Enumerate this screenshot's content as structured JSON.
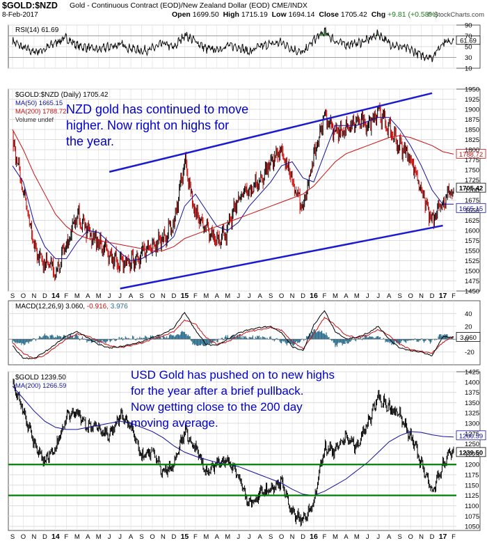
{
  "header": {
    "symbol": "$GOLD:$NZD",
    "subtitle": "Gold - Continuous Contract (EOD)/New Zealand Dollar (EOD)  CME/INDX",
    "date": "8-Feb-2017",
    "open_label": "Open",
    "open": "1699.50",
    "high_label": "High",
    "high": "1715.19",
    "low_label": "Low",
    "low": "1694.14",
    "close_label": "Close",
    "close": "1705.42",
    "chg_label": "Chg",
    "chg": "+9.81 (+0.58%)",
    "watermark": "© StockCharts.com"
  },
  "colors": {
    "price": "#000000",
    "up_bar": "#000000",
    "down_bar": "#cc0000",
    "ma50": "#1010a0",
    "ma200": "#cc1010",
    "trendline": "#1a1ad0",
    "support": "#008000",
    "annotation": "#0000cc",
    "rsi_fill_high": "#2a8c2a",
    "rsi_fill_low": "#d05050",
    "macd_hist": "#2a6c8c",
    "grid": "#dcdcdc"
  },
  "x_axis": {
    "labels": [
      "S",
      "O",
      "N",
      "D",
      "14",
      "F",
      "M",
      "A",
      "M",
      "J",
      "J",
      "A",
      "S",
      "O",
      "N",
      "D",
      "15",
      "F",
      "M",
      "A",
      "M",
      "J",
      "J",
      "A",
      "S",
      "O",
      "N",
      "D",
      "16",
      "F",
      "M",
      "A",
      "M",
      "J",
      "J",
      "A",
      "S",
      "O",
      "N",
      "D",
      "17",
      "F"
    ],
    "years": [
      "14",
      "15",
      "16",
      "17"
    ]
  },
  "chart_data": [
    {
      "type": "line",
      "panel": "RSI",
      "legend": "RSI(14) 61.69",
      "current_label": "61.69",
      "ylim": [
        10,
        90
      ],
      "y_ticks": [
        10,
        30,
        50,
        70,
        90
      ],
      "reference_lines": [
        30,
        70
      ],
      "x": [
        "2013-09",
        "2013-10",
        "2013-11",
        "2013-12",
        "2014-01",
        "2014-02",
        "2014-03",
        "2014-04",
        "2014-05",
        "2014-06",
        "2014-07",
        "2014-08",
        "2014-09",
        "2014-10",
        "2014-11",
        "2014-12",
        "2015-01",
        "2015-02",
        "2015-03",
        "2015-04",
        "2015-05",
        "2015-06",
        "2015-07",
        "2015-08",
        "2015-09",
        "2015-10",
        "2015-11",
        "2015-12",
        "2016-01",
        "2016-02",
        "2016-03",
        "2016-04",
        "2016-05",
        "2016-06",
        "2016-07",
        "2016-08",
        "2016-09",
        "2016-10",
        "2016-11",
        "2016-12",
        "2017-01",
        "2017-02"
      ],
      "values": [
        60,
        48,
        40,
        45,
        58,
        66,
        52,
        48,
        44,
        50,
        54,
        47,
        42,
        46,
        56,
        48,
        72,
        60,
        46,
        44,
        52,
        50,
        40,
        50,
        55,
        58,
        46,
        38,
        62,
        78,
        60,
        54,
        56,
        62,
        74,
        56,
        50,
        44,
        34,
        30,
        58,
        62
      ]
    },
    {
      "type": "line",
      "panel": "$GOLD:$NZD",
      "legend": [
        "$GOLD:$NZD (Daily) 1705.42",
        "MA(50) 1665.15",
        "MA(200) 1788.72",
        "Volume undef"
      ],
      "current_labels": [
        "1705.42",
        "1665.15",
        "1788.72"
      ],
      "ylim": [
        1450,
        1950
      ],
      "y_ticks": [
        1450,
        1475,
        1500,
        1525,
        1550,
        1575,
        1600,
        1625,
        1650,
        1675,
        1700,
        1725,
        1750,
        1775,
        1800,
        1825,
        1850,
        1875,
        1900,
        1925,
        1950
      ],
      "x": [
        "2013-09",
        "2013-10",
        "2013-11",
        "2013-12",
        "2014-01",
        "2014-02",
        "2014-03",
        "2014-04",
        "2014-05",
        "2014-06",
        "2014-07",
        "2014-08",
        "2014-09",
        "2014-10",
        "2014-11",
        "2014-12",
        "2015-01",
        "2015-02",
        "2015-03",
        "2015-04",
        "2015-05",
        "2015-06",
        "2015-07",
        "2015-08",
        "2015-09",
        "2015-10",
        "2015-11",
        "2015-12",
        "2016-01",
        "2016-02",
        "2016-03",
        "2016-04",
        "2016-05",
        "2016-06",
        "2016-07",
        "2016-08",
        "2016-09",
        "2016-10",
        "2016-11",
        "2016-12",
        "2017-01",
        "2017-02"
      ],
      "series": [
        {
          "name": "$GOLD:$NZD",
          "values": [
            1820,
            1700,
            1560,
            1520,
            1500,
            1560,
            1640,
            1600,
            1570,
            1540,
            1520,
            1520,
            1540,
            1560,
            1580,
            1620,
            1770,
            1640,
            1600,
            1580,
            1600,
            1680,
            1700,
            1720,
            1770,
            1800,
            1720,
            1650,
            1780,
            1890,
            1840,
            1850,
            1870,
            1860,
            1900,
            1850,
            1810,
            1780,
            1700,
            1620,
            1670,
            1705
          ]
        },
        {
          "name": "MA(50)",
          "values": [
            1760,
            1720,
            1620,
            1560,
            1530,
            1530,
            1570,
            1600,
            1595,
            1570,
            1545,
            1525,
            1530,
            1545,
            1560,
            1585,
            1660,
            1690,
            1650,
            1610,
            1600,
            1620,
            1660,
            1690,
            1720,
            1760,
            1770,
            1730,
            1720,
            1790,
            1860,
            1860,
            1860,
            1870,
            1880,
            1880,
            1850,
            1810,
            1760,
            1700,
            1665,
            1665
          ]
        },
        {
          "name": "MA(200)",
          "values": [
            1850,
            1800,
            1740,
            1690,
            1640,
            1610,
            1590,
            1580,
            1575,
            1570,
            1565,
            1560,
            1555,
            1550,
            1550,
            1560,
            1580,
            1590,
            1600,
            1610,
            1620,
            1630,
            1640,
            1650,
            1660,
            1670,
            1680,
            1690,
            1710,
            1740,
            1770,
            1790,
            1800,
            1810,
            1820,
            1830,
            1835,
            1830,
            1820,
            1810,
            1795,
            1789
          ]
        }
      ],
      "trendlines": [
        {
          "x": [
            "2014-06",
            "2016-12"
          ],
          "y": [
            1745,
            1940
          ]
        },
        {
          "x": [
            "2014-07",
            "2017-01"
          ],
          "y": [
            1456,
            1612
          ]
        }
      ],
      "annotation": "NZD gold has continued to move higher. Now right on highs for the year."
    },
    {
      "type": "line",
      "panel": "MACD",
      "legend": [
        "MACD(12,26,9) 3.060,",
        "-0.916,",
        "3.976"
      ],
      "current_label": "3.060",
      "ylim": [
        -40,
        60
      ],
      "y_ticks": [
        -20,
        0,
        20,
        40
      ],
      "x": [
        "2013-09",
        "2013-10",
        "2013-11",
        "2013-12",
        "2014-01",
        "2014-02",
        "2014-03",
        "2014-04",
        "2014-05",
        "2014-06",
        "2014-07",
        "2014-08",
        "2014-09",
        "2014-10",
        "2014-11",
        "2014-12",
        "2015-01",
        "2015-02",
        "2015-03",
        "2015-04",
        "2015-05",
        "2015-06",
        "2015-07",
        "2015-08",
        "2015-09",
        "2015-10",
        "2015-11",
        "2015-12",
        "2016-01",
        "2016-02",
        "2016-03",
        "2016-04",
        "2016-05",
        "2016-06",
        "2016-07",
        "2016-08",
        "2016-09",
        "2016-10",
        "2016-11",
        "2016-12",
        "2017-01",
        "2017-02"
      ],
      "series": [
        {
          "name": "MACD",
          "values": [
            -10,
            -30,
            -30,
            -20,
            -8,
            5,
            12,
            2,
            -8,
            -14,
            -12,
            -8,
            -4,
            3,
            8,
            18,
            42,
            14,
            -8,
            -10,
            0,
            10,
            15,
            18,
            20,
            10,
            -12,
            -18,
            22,
            45,
            12,
            0,
            3,
            9,
            20,
            0,
            -14,
            -18,
            -20,
            -26,
            4,
            3.06
          ]
        },
        {
          "name": "Signal",
          "values": [
            -6,
            -22,
            -30,
            -25,
            -12,
            0,
            8,
            5,
            -3,
            -10,
            -13,
            -10,
            -6,
            0,
            5,
            12,
            30,
            24,
            2,
            -8,
            -4,
            5,
            12,
            15,
            18,
            14,
            -4,
            -15,
            8,
            34,
            22,
            6,
            2,
            6,
            15,
            6,
            -8,
            -16,
            -19,
            -22,
            -5,
            3.98
          ]
        },
        {
          "name": "Histogram",
          "values": [
            -4,
            -8,
            0,
            5,
            4,
            5,
            4,
            -3,
            -5,
            -4,
            1,
            2,
            2,
            3,
            3,
            6,
            12,
            -10,
            -10,
            -2,
            4,
            5,
            3,
            3,
            2,
            -4,
            -8,
            -3,
            14,
            11,
            -10,
            -6,
            1,
            3,
            5,
            -6,
            -6,
            -2,
            -1,
            -4,
            9,
            -0.92
          ]
        }
      ]
    },
    {
      "type": "line",
      "panel": "$GOLD",
      "legend": [
        "$GOLD 1239.50",
        "MA(200) 1266.59"
      ],
      "current_labels": [
        "1266.59",
        "1239.50"
      ],
      "ylim": [
        1040,
        1425
      ],
      "y_ticks": [
        1050,
        1075,
        1100,
        1125,
        1150,
        1175,
        1200,
        1225,
        1250,
        1275,
        1300,
        1325,
        1350,
        1375,
        1400,
        1425
      ],
      "x": [
        "2013-09",
        "2013-10",
        "2013-11",
        "2013-12",
        "2014-01",
        "2014-02",
        "2014-03",
        "2014-04",
        "2014-05",
        "2014-06",
        "2014-07",
        "2014-08",
        "2014-09",
        "2014-10",
        "2014-11",
        "2014-12",
        "2015-01",
        "2015-02",
        "2015-03",
        "2015-04",
        "2015-05",
        "2015-06",
        "2015-07",
        "2015-08",
        "2015-09",
        "2015-10",
        "2015-11",
        "2015-12",
        "2016-01",
        "2016-02",
        "2016-03",
        "2016-04",
        "2016-05",
        "2016-06",
        "2016-07",
        "2016-08",
        "2016-09",
        "2016-10",
        "2016-11",
        "2016-12",
        "2017-01",
        "2017-02"
      ],
      "series": [
        {
          "name": "$GOLD",
          "values": [
            1400,
            1330,
            1250,
            1210,
            1240,
            1320,
            1330,
            1290,
            1290,
            1270,
            1320,
            1290,
            1220,
            1230,
            1180,
            1200,
            1280,
            1240,
            1180,
            1200,
            1210,
            1175,
            1100,
            1130,
            1140,
            1160,
            1080,
            1065,
            1110,
            1240,
            1230,
            1270,
            1240,
            1300,
            1360,
            1340,
            1320,
            1270,
            1200,
            1135,
            1200,
            1239.5
          ]
        },
        {
          "name": "MA(200)",
          "values": [
            1390,
            1360,
            1330,
            1305,
            1290,
            1285,
            1285,
            1290,
            1295,
            1300,
            1305,
            1300,
            1290,
            1280,
            1265,
            1245,
            1230,
            1220,
            1212,
            1205,
            1200,
            1195,
            1185,
            1175,
            1165,
            1155,
            1140,
            1128,
            1125,
            1135,
            1150,
            1165,
            1185,
            1205,
            1230,
            1255,
            1270,
            1280,
            1278,
            1272,
            1268,
            1266.59
          ]
        }
      ],
      "reference_lines": [
        1200,
        1125
      ],
      "annotation": "USD Gold has pushed on to new highs for the year after a brief pullback. Now getting close to the 200 day moving average."
    }
  ]
}
